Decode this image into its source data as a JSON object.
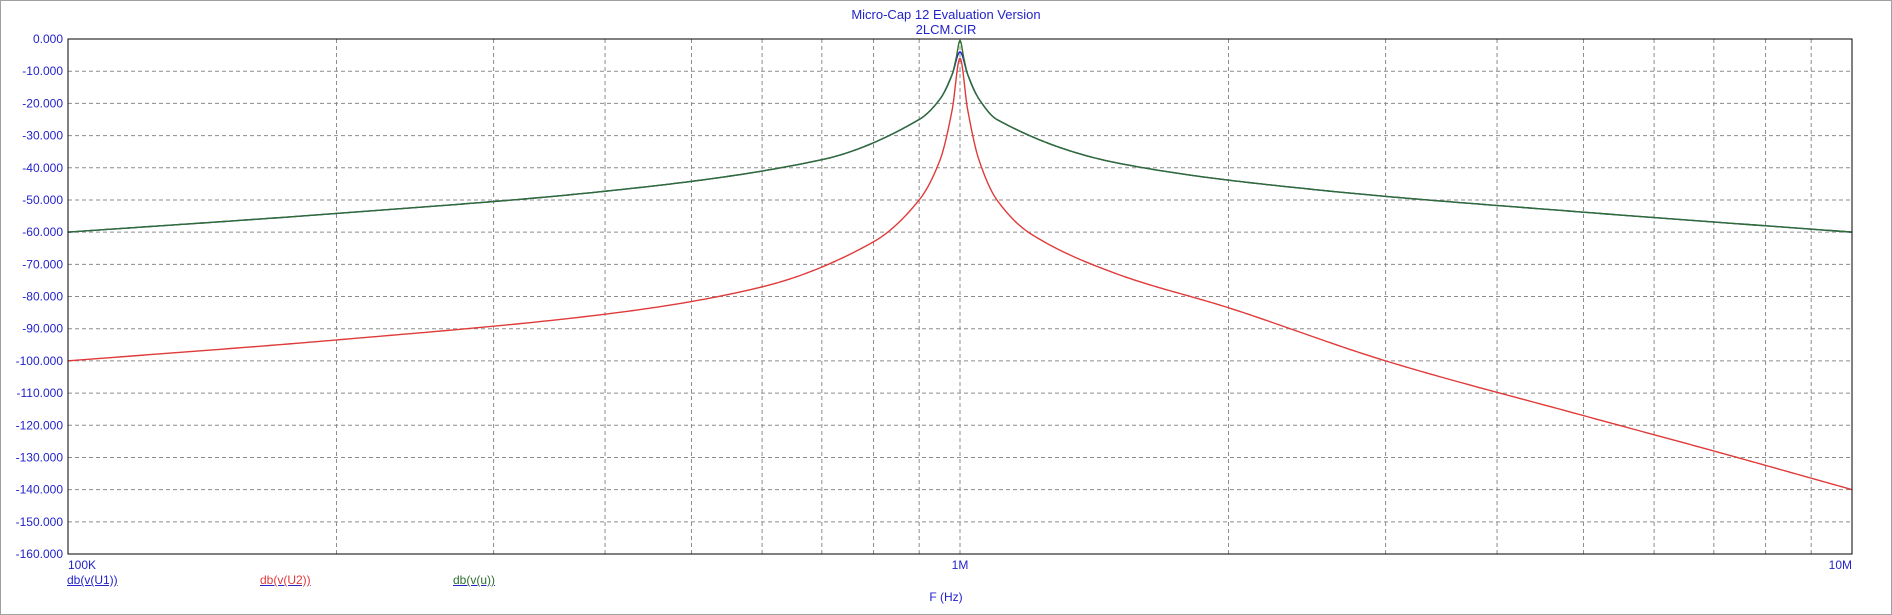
{
  "window": {
    "title": "Micro-Cap 12 Evaluation Version",
    "file": "2LCM.CIR"
  },
  "colors": {
    "axis_text": "#2323c8",
    "grid": "#8c8c8c",
    "frame": "#000000",
    "series_u1": "#2323c8",
    "series_u2": "#e03a3a",
    "series_u": "#2e6e2e"
  },
  "chart_data": {
    "type": "line",
    "x_scale": "log",
    "xlim": [
      100000,
      10000000
    ],
    "ylim": [
      -160,
      0
    ],
    "grid": true,
    "xlabel": "F (Hz)",
    "ylabel": "",
    "y_ticks": [
      0,
      -10,
      -20,
      -30,
      -40,
      -50,
      -60,
      -70,
      -80,
      -90,
      -100,
      -110,
      -120,
      -130,
      -140,
      -150,
      -160
    ],
    "y_tick_labels": [
      "0.000",
      "-10.000",
      "-20.000",
      "-30.000",
      "-40.000",
      "-50.000",
      "-60.000",
      "-70.000",
      "-80.000",
      "-90.000",
      "-100.000",
      "-110.000",
      "-120.000",
      "-130.000",
      "-140.000",
      "-150.000",
      "-160.000"
    ],
    "x_ticks": [
      100000,
      1000000,
      10000000
    ],
    "x_tick_labels": [
      "100K",
      "1M",
      "10M"
    ],
    "series": [
      {
        "name": "db(v(U1))",
        "color": "#2323c8",
        "x": [
          100000,
          200000,
          400000,
          700000,
          900000,
          950000,
          980000,
          1000000,
          1020000,
          1050000,
          1100000,
          1500000,
          2500000,
          5000000,
          10000000
        ],
        "y": [
          -60.0,
          -54.2,
          -47.3,
          -37.5,
          -25.0,
          -18.6,
          -11.0,
          -4.0,
          -11.0,
          -18.6,
          -25.0,
          -38.5,
          -46.8,
          -53.8,
          -60.0
        ]
      },
      {
        "name": "db(v(U2))",
        "color": "#e03a3a",
        "x": [
          100000,
          200000,
          400000,
          600000,
          800000,
          900000,
          950000,
          980000,
          1000000,
          1020000,
          1050000,
          1100000,
          1200000,
          1500000,
          2000000,
          3000000,
          5000000,
          7000000,
          10000000
        ],
        "y": [
          -100.0,
          -93.5,
          -85.5,
          -77.0,
          -63.0,
          -50.0,
          -37.5,
          -22.0,
          -6.0,
          -22.0,
          -37.5,
          -50.0,
          -60.5,
          -73.0,
          -83.5,
          -100.0,
          -117.0,
          -128.0,
          -140.0
        ]
      },
      {
        "name": "db(v(u))",
        "color": "#2e6e2e",
        "x": [
          100000,
          200000,
          400000,
          700000,
          900000,
          950000,
          980000,
          990000,
          1000000,
          1010000,
          1020000,
          1050000,
          1100000,
          1500000,
          2500000,
          5000000,
          10000000
        ],
        "y": [
          -60.0,
          -54.2,
          -47.3,
          -37.5,
          -25.0,
          -18.6,
          -11.0,
          -6.0,
          -0.5,
          -6.0,
          -11.0,
          -18.6,
          -25.0,
          -38.5,
          -46.8,
          -53.8,
          -60.0
        ]
      }
    ]
  }
}
